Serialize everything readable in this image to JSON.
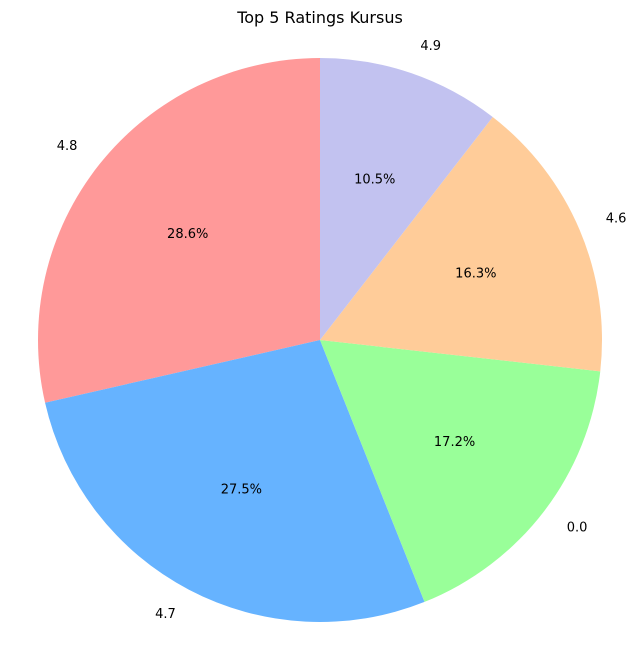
{
  "chart_data": {
    "type": "pie",
    "title": "Top 5 Ratings Kursus",
    "categories": [
      "4.8",
      "4.7",
      "0.0",
      "4.6",
      "4.9"
    ],
    "values": [
      28.6,
      27.5,
      17.2,
      16.3,
      10.5
    ],
    "value_labels": [
      "28.6%",
      "27.5%",
      "17.2%",
      "16.3%",
      "10.5%"
    ],
    "colors": [
      "#ff9999",
      "#66b3ff",
      "#99ff99",
      "#ffcc99",
      "#c2c2f0"
    ],
    "start_angle_deg": 90,
    "direction": "counterclockwise",
    "legend": "none"
  }
}
